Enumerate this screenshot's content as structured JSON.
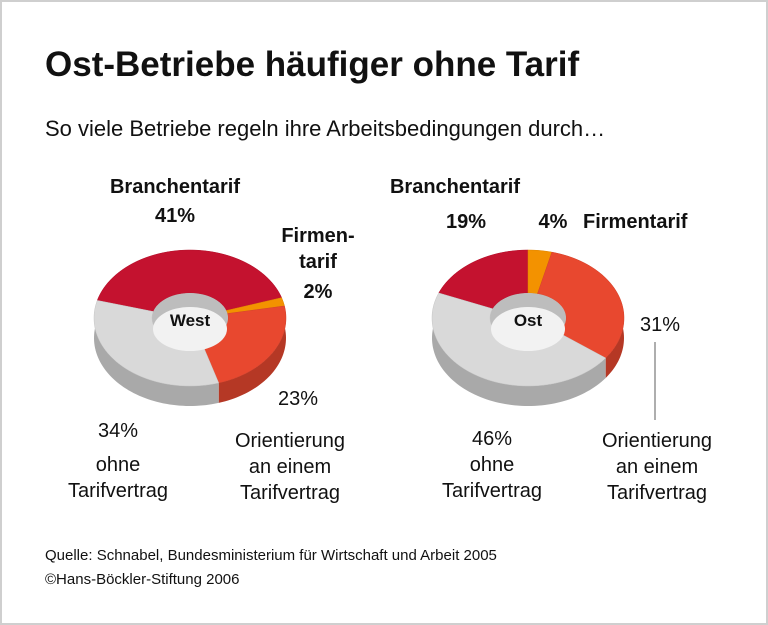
{
  "title": "Ost-Betriebe häufiger ohne Tarif",
  "subtitle": "So viele Betriebe regeln ihre Arbeitsbedingungen durch…",
  "source": [
    "Quelle: Schnabel, Bundesministerium für Wirtschaft und Arbeit 2005",
    "©Hans-Böckler-Stiftung 2006"
  ],
  "chart_data": [
    {
      "type": "donut",
      "center_label": "West",
      "categories": [
        "Branchentarif",
        "Firmen-\ntarif",
        "Orientierung\nan einem\nTarifvertrag",
        "ohne\nTarifvertrag"
      ],
      "values": [
        41,
        2,
        23,
        34
      ],
      "value_labels": [
        "41%",
        "2%",
        "23%",
        "34%"
      ],
      "colors": [
        "#c4122f",
        "#f39200",
        "#e8482f",
        "#d9d9d9"
      ]
    },
    {
      "type": "donut",
      "center_label": "Ost",
      "categories": [
        "Branchentarif",
        "Firmentarif",
        "Orientierung\nan einem\nTarifvertrag",
        "ohne\nTarifvertrag"
      ],
      "values": [
        19,
        4,
        31,
        46
      ],
      "value_labels": [
        "19%",
        "4%",
        "31%",
        "46%"
      ],
      "colors": [
        "#c4122f",
        "#f39200",
        "#e8482f",
        "#d9d9d9"
      ]
    }
  ]
}
